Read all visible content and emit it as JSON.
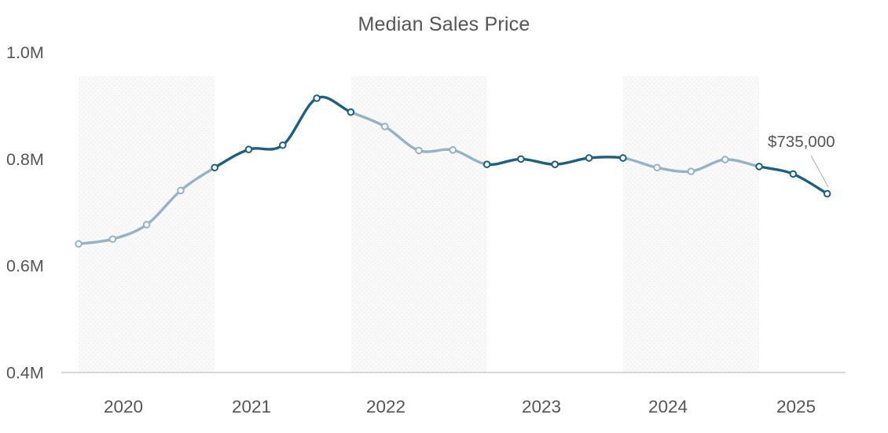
{
  "title": "Median Sales Price",
  "colors": {
    "line_dark": "#1c5f82",
    "line_light": "#95b3c5",
    "marker_fill": "#ffffff",
    "axis_line": "#cccccc",
    "band_fill": "#f9f9f9",
    "band_dot": "#ececec",
    "text": "#555555",
    "callout_line": "#b5b5b5"
  },
  "chart_data": {
    "type": "line",
    "title": "Median Sales Price",
    "x": [
      "2020 Q1",
      "2020 Q2",
      "2020 Q3",
      "2020 Q4",
      "2021 Q1",
      "2021 Q2",
      "2021 Q3",
      "2021 Q4",
      "2022 Q1",
      "2022 Q2",
      "2022 Q3",
      "2022 Q4",
      "2023 Q1",
      "2023 Q2",
      "2023 Q3",
      "2023 Q4",
      "2024 Q1",
      "2024 Q2",
      "2024 Q3",
      "2024 Q4",
      "2025 Q1",
      "2025 Q2",
      "2025 Q3"
    ],
    "values": [
      641000,
      650000,
      677000,
      741000,
      784000,
      818000,
      826000,
      914000,
      888000,
      861000,
      816000,
      817000,
      790000,
      800000,
      790000,
      802000,
      802000,
      784000,
      777000,
      799000,
      786000,
      772000,
      735000
    ],
    "x_ticks": [
      "2020",
      "2021",
      "2022",
      "2023",
      "2024",
      "2025"
    ],
    "y_ticks": [
      "0.4M",
      "0.6M",
      "0.8M",
      "1.0M"
    ],
    "y_tick_values": [
      400000,
      600000,
      800000,
      1000000
    ],
    "ylim": [
      400000,
      1000000
    ],
    "grid": false,
    "legend": "none",
    "smooth": true,
    "banded_years": [
      "2020",
      "2022",
      "2024"
    ],
    "year_line_colors": {
      "2020": "light",
      "2021": "dark",
      "2022": "light",
      "2023": "dark",
      "2024": "light",
      "2025": "dark"
    },
    "annotation": {
      "text": "$735,000",
      "target_period": "2025 Q3",
      "target_value": 735000
    }
  }
}
